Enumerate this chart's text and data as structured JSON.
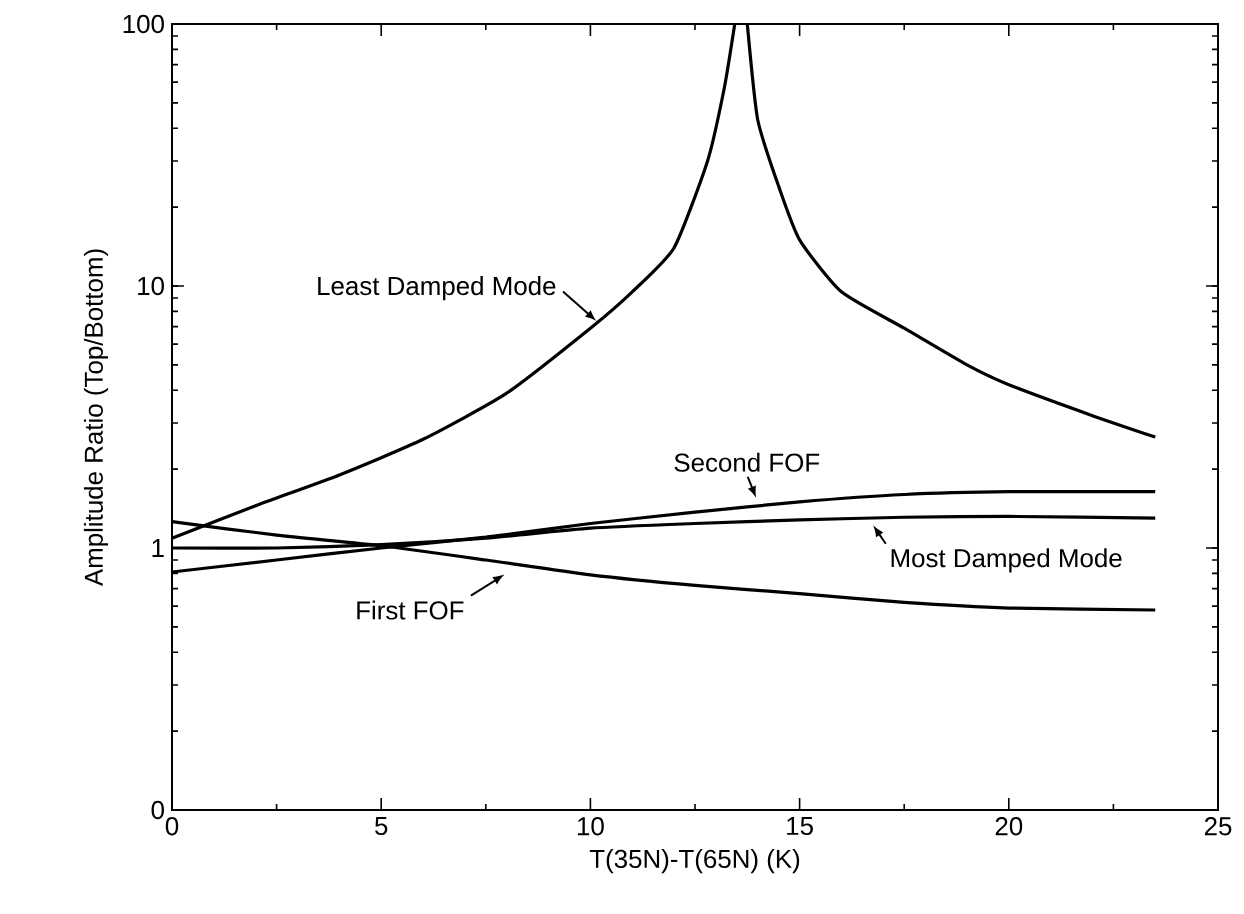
{
  "chart_data": {
    "type": "line",
    "xlabel": "T(35N)-T(65N) (K)",
    "ylabel": "Amplitude Ratio (Top/Bottom)",
    "log": "y",
    "xlim": [
      0,
      25
    ],
    "xticks": [
      0,
      5,
      10,
      15,
      20,
      25
    ],
    "ylim": [
      0.1,
      100
    ],
    "yticks": [
      {
        "value": 0.1,
        "label": "0"
      },
      1,
      10,
      100
    ],
    "grid": false,
    "marker": "none",
    "line_style": "solid",
    "series": [
      {
        "color": "#000000",
        "x": [
          0,
          2,
          4,
          6,
          8,
          10,
          11,
          12,
          12.8,
          13.2,
          13.45,
          13.55,
          13.75,
          14,
          14.5,
          15,
          16,
          17.5,
          19,
          20,
          22,
          23.5
        ],
        "values": [
          1.09,
          1.45,
          1.9,
          2.6,
          3.9,
          6.9,
          9.5,
          14,
          30,
          57,
          100,
          null,
          100,
          43,
          24,
          15,
          9.5,
          6.9,
          5,
          4.2,
          3.2,
          2.65
        ]
      },
      {
        "color": "#000000",
        "x": [
          0,
          2.5,
          5,
          7.5,
          10,
          12.5,
          15,
          17.5,
          20,
          23.5
        ],
        "values": [
          1.26,
          1.12,
          1.02,
          0.9,
          0.79,
          0.72,
          0.67,
          0.62,
          0.59,
          0.58
        ]
      },
      {
        "color": "#000000",
        "x": [
          0,
          2.5,
          5,
          7.5,
          10,
          12.5,
          15,
          17.5,
          20,
          23.5
        ],
        "values": [
          0.81,
          0.9,
          1.0,
          1.1,
          1.24,
          1.37,
          1.5,
          1.6,
          1.64,
          1.64
        ]
      },
      {
        "color": "#000000",
        "x": [
          0,
          2.5,
          5,
          7.5,
          10,
          12.5,
          15,
          17.5,
          20,
          23.5
        ],
        "values": [
          1.0,
          1.0,
          1.03,
          1.09,
          1.19,
          1.24,
          1.28,
          1.31,
          1.32,
          1.3
        ]
      }
    ],
    "annotations": [
      {
        "text": "Least Damped Mode",
        "x": 10.3,
        "y": 7
      },
      {
        "text": "Second FOF",
        "x": 14,
        "y": 1.5
      },
      {
        "text": "Most Damped Mode",
        "x": 16.7,
        "y": 1.26
      },
      {
        "text": "First FOF",
        "x": 8.1,
        "y": 0.82
      }
    ]
  }
}
